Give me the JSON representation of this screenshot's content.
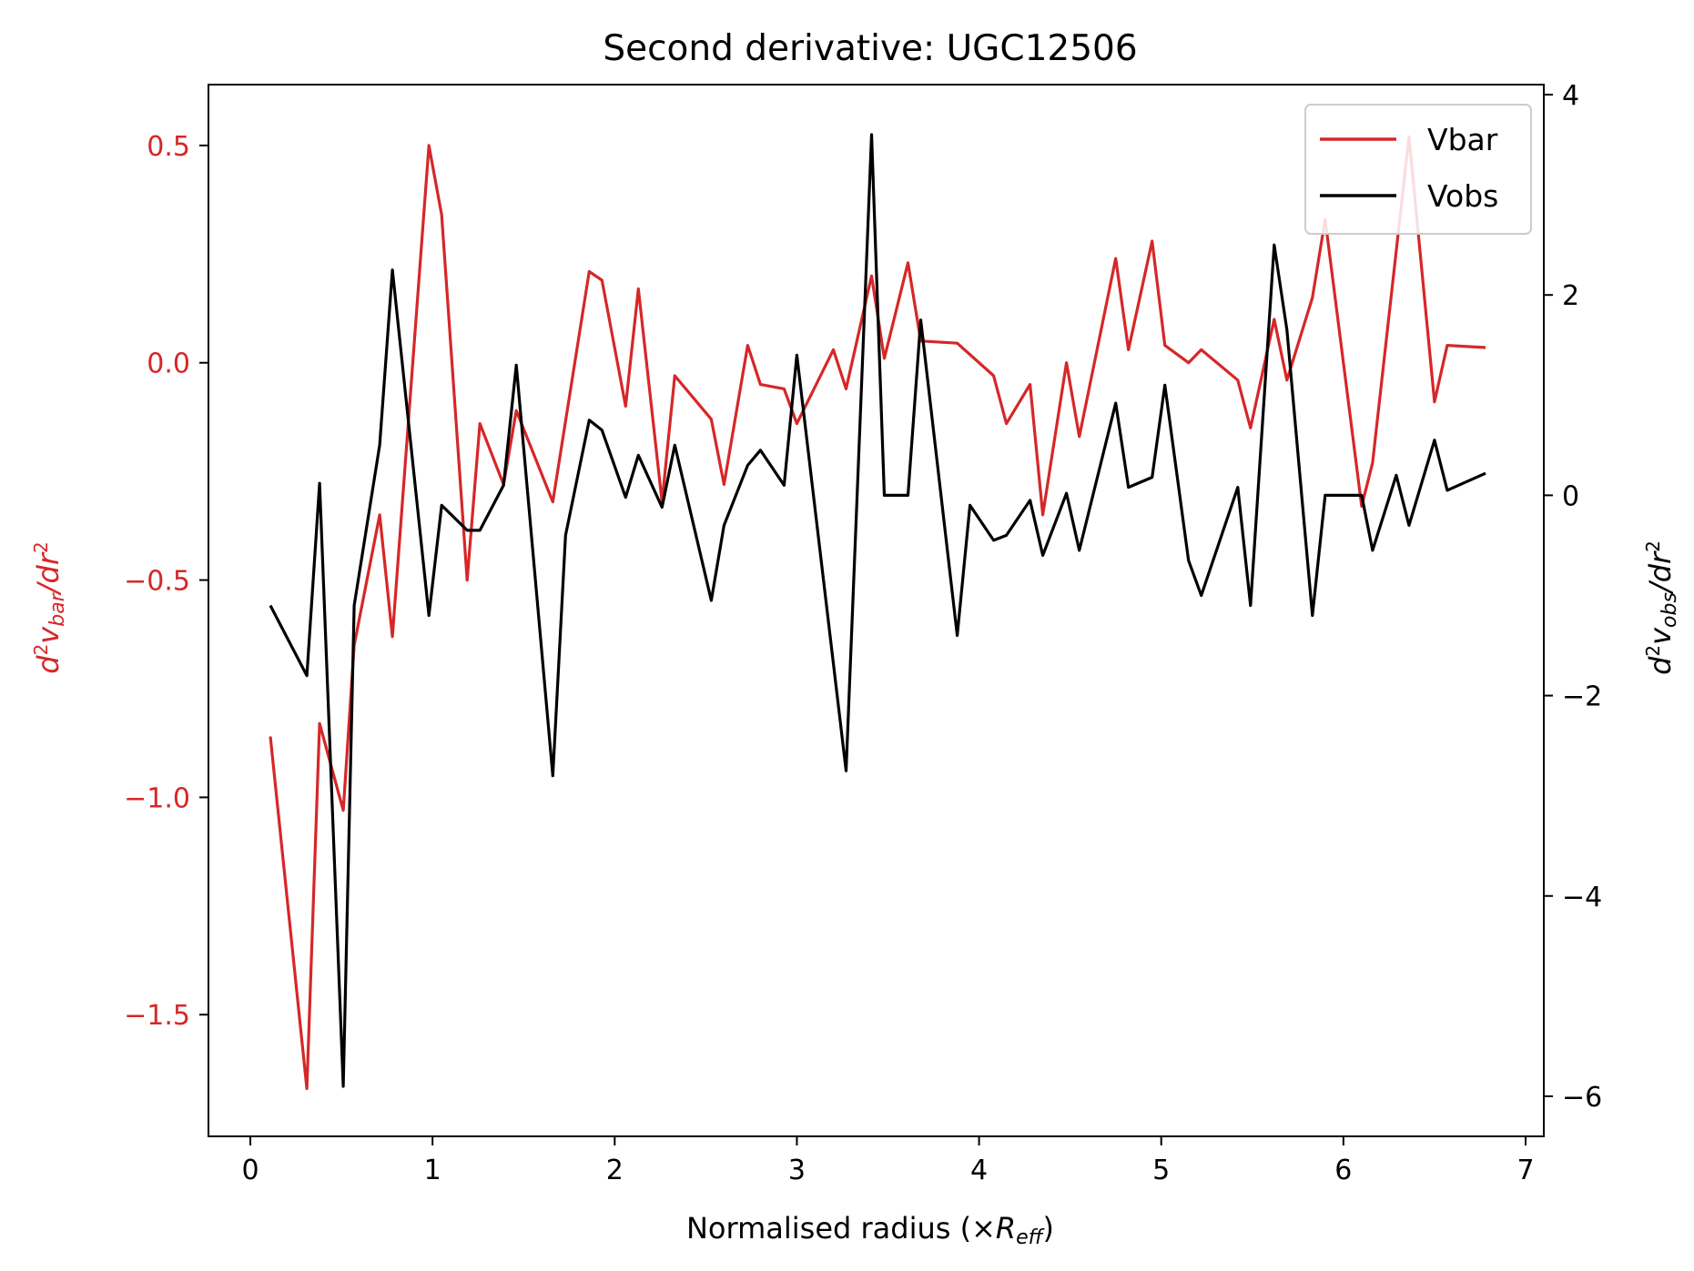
{
  "chart_data": {
    "type": "line",
    "title": "Second derivative: UGC12506",
    "xlabel": "Normalised radius (×R_eff)",
    "ylabel_left": "d²v_bar/dr²",
    "ylabel_right": "d²v_obs/dr²",
    "xlim": [
      -0.23,
      7.1
    ],
    "ylim_left": [
      -1.78,
      0.64
    ],
    "ylim_right": [
      -6.4,
      4.1
    ],
    "x_ticks": [
      0,
      1,
      2,
      3,
      4,
      5,
      6,
      7
    ],
    "x_tick_labels": [
      "0",
      "1",
      "2",
      "3",
      "4",
      "5",
      "6",
      "7"
    ],
    "y_left_ticks": [
      0.5,
      0.0,
      -0.5,
      -1.0,
      -1.5
    ],
    "y_left_tick_labels": [
      "0.5",
      "0.0",
      "−0.5",
      "−1.0",
      "−1.5"
    ],
    "y_right_ticks": [
      4,
      2,
      0,
      -2,
      -4,
      -6
    ],
    "y_right_tick_labels": [
      "4",
      "2",
      "0",
      "−2",
      "−4",
      "−6"
    ],
    "legend": {
      "position": "upper right",
      "entries": [
        {
          "label": "Vbar",
          "color": "#d62728"
        },
        {
          "label": "Vobs",
          "color": "#000000"
        }
      ]
    },
    "series": [
      {
        "name": "Vbar",
        "axis": "left",
        "color": "#d62728",
        "x": [
          0.11,
          0.31,
          0.38,
          0.51,
          0.57,
          0.71,
          0.78,
          0.98,
          1.05,
          1.19,
          1.26,
          1.39,
          1.46,
          1.66,
          1.86,
          1.93,
          2.06,
          2.13,
          2.26,
          2.33,
          2.53,
          2.6,
          2.73,
          2.8,
          2.93,
          3.0,
          3.2,
          3.27,
          3.41,
          3.48,
          3.61,
          3.68,
          3.88,
          4.08,
          4.15,
          4.28,
          4.35,
          4.48,
          4.55,
          4.75,
          4.82,
          4.95,
          5.02,
          5.15,
          5.22,
          5.42,
          5.49,
          5.62,
          5.69,
          5.83,
          5.9,
          6.1,
          6.16,
          6.36,
          6.5,
          6.57,
          6.78
        ],
        "values": [
          -0.86,
          -1.67,
          -0.83,
          -1.03,
          -0.65,
          -0.35,
          -0.63,
          0.5,
          0.34,
          -0.5,
          -0.14,
          -0.28,
          -0.11,
          -0.32,
          0.21,
          0.19,
          -0.1,
          0.17,
          -0.32,
          -0.03,
          -0.13,
          -0.28,
          0.04,
          -0.05,
          -0.06,
          -0.14,
          0.03,
          -0.06,
          0.2,
          0.01,
          0.23,
          0.05,
          0.045,
          -0.03,
          -0.14,
          -0.05,
          -0.35,
          0.0,
          -0.17,
          0.24,
          0.03,
          0.28,
          0.04,
          0.0,
          0.03,
          -0.04,
          -0.15,
          0.1,
          -0.04,
          0.15,
          0.33,
          -0.33,
          -0.23,
          0.52,
          -0.09,
          0.04,
          0.035
        ]
      },
      {
        "name": "Vobs",
        "axis": "right",
        "color": "#000000",
        "x": [
          0.11,
          0.31,
          0.38,
          0.51,
          0.57,
          0.71,
          0.78,
          0.98,
          1.05,
          1.19,
          1.26,
          1.39,
          1.46,
          1.66,
          1.73,
          1.86,
          1.93,
          2.06,
          2.13,
          2.26,
          2.33,
          2.53,
          2.6,
          2.73,
          2.8,
          2.93,
          3.0,
          3.27,
          3.41,
          3.48,
          3.61,
          3.68,
          3.88,
          3.95,
          4.08,
          4.15,
          4.28,
          4.35,
          4.48,
          4.55,
          4.75,
          4.82,
          4.95,
          5.02,
          5.15,
          5.22,
          5.42,
          5.49,
          5.62,
          5.69,
          5.83,
          5.9,
          6.1,
          6.16,
          6.29,
          6.36,
          6.5,
          6.57,
          6.78
        ],
        "values": [
          -1.1,
          -1.8,
          0.12,
          -5.9,
          -1.1,
          0.5,
          2.25,
          -1.2,
          -0.1,
          -0.35,
          -0.35,
          0.1,
          1.3,
          -2.8,
          -0.4,
          0.75,
          0.65,
          -0.02,
          0.4,
          -0.12,
          0.5,
          -1.05,
          -0.3,
          0.3,
          0.45,
          0.1,
          1.4,
          -2.75,
          3.6,
          0.0,
          0.0,
          1.75,
          -1.4,
          -0.1,
          -0.45,
          -0.4,
          -0.05,
          -0.6,
          0.02,
          -0.55,
          0.92,
          0.08,
          0.18,
          1.1,
          -0.65,
          -1.0,
          0.08,
          -1.1,
          2.5,
          1.65,
          -1.2,
          0.0,
          0.0,
          -0.55,
          0.2,
          -0.3,
          0.55,
          0.05,
          0.22
        ]
      }
    ]
  }
}
